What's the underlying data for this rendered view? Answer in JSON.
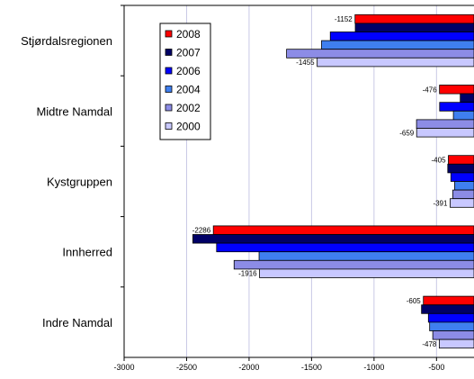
{
  "chart_data": {
    "type": "bar",
    "orientation": "horizontal",
    "title": "",
    "xlabel": "",
    "ylabel": "",
    "categories": [
      "Stjørdalsregionen",
      "Midtre Namdal",
      "Kystgruppen",
      "Innherred",
      "Indre Namdal"
    ],
    "series": [
      {
        "name": "2008",
        "color": "#ff0000",
        "values": [
          -1152,
          -476,
          -405,
          -2286,
          -605
        ]
      },
      {
        "name": "2007",
        "color": "#000066",
        "values": [
          -1150,
          -310,
          -410,
          -2450,
          -620
        ]
      },
      {
        "name": "2006",
        "color": "#0000ff",
        "values": [
          -1350,
          -475,
          -385,
          -2260,
          -565
        ]
      },
      {
        "name": "2004",
        "color": "#3f7fef",
        "values": [
          -1420,
          -365,
          -355,
          -1920,
          -555
        ]
      },
      {
        "name": "2002",
        "color": "#8c8ce6",
        "values": [
          -1700,
          -660,
          -370,
          -2120,
          -530
        ]
      },
      {
        "name": "2000",
        "color": "#c8c8ff",
        "values": [
          -1455,
          -659,
          -391,
          -1916,
          -478
        ]
      }
    ],
    "data_labels": [
      {
        "category": "Stjørdalsregionen",
        "series": "2008",
        "text": "-1152"
      },
      {
        "category": "Stjørdalsregionen",
        "series": "2000",
        "text": "-1455"
      },
      {
        "category": "Midtre Namdal",
        "series": "2008",
        "text": "-476"
      },
      {
        "category": "Midtre Namdal",
        "series": "2000",
        "text": "-659"
      },
      {
        "category": "Kystgruppen",
        "series": "2008",
        "text": "-405"
      },
      {
        "category": "Kystgruppen",
        "series": "2000",
        "text": "-391"
      },
      {
        "category": "Innherred",
        "series": "2008",
        "text": "-2286"
      },
      {
        "category": "Innherred",
        "series": "2000",
        "text": "-1916"
      },
      {
        "category": "Indre Namdal",
        "series": "2008",
        "text": "-605"
      },
      {
        "category": "Indre Namdal",
        "series": "2000",
        "text": "-478"
      }
    ],
    "xlim": [
      -3000,
      -200
    ],
    "x_ticks": [
      -3000,
      -2500,
      -2000,
      -1500,
      -1000,
      -500
    ],
    "x_tick_labels": [
      "-3000",
      "-2500",
      "-2000",
      "-1500",
      "-1000",
      "-500"
    ],
    "grid": "vertical",
    "legend_position": "top-left"
  }
}
